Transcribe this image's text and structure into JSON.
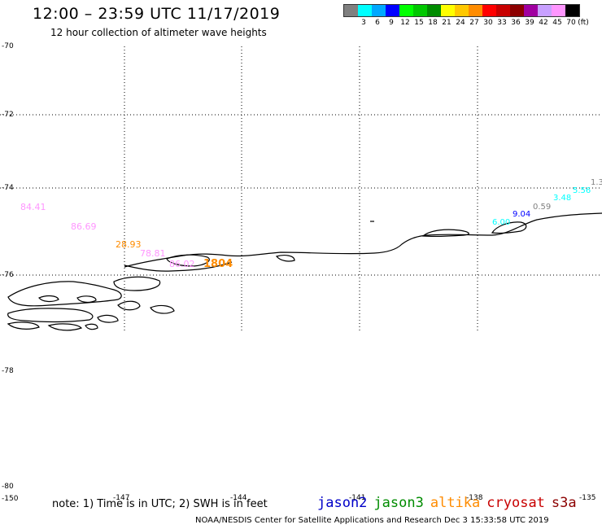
{
  "header": {
    "title": "12:00 – 23:59 UTC 11/17/2019",
    "subtitle": "12 hour collection of altimeter wave heights"
  },
  "legend": {
    "unit": "(ft)",
    "items": [
      {
        "color": "#808080",
        "label": ""
      },
      {
        "color": "#00ffff",
        "label": "3"
      },
      {
        "color": "#00a8ff",
        "label": "6"
      },
      {
        "color": "#0000ff",
        "label": "9"
      },
      {
        "color": "#00ff00",
        "label": "12"
      },
      {
        "color": "#00c800",
        "label": "15"
      },
      {
        "color": "#008c00",
        "label": "18"
      },
      {
        "color": "#ffff00",
        "label": "21"
      },
      {
        "color": "#ffc800",
        "label": "24"
      },
      {
        "color": "#ff8c00",
        "label": "27"
      },
      {
        "color": "#ff0000",
        "label": "30"
      },
      {
        "color": "#c80000",
        "label": "33"
      },
      {
        "color": "#8c0000",
        "label": "36"
      },
      {
        "color": "#a000a0",
        "label": "39"
      },
      {
        "color": "#c8a0ff",
        "label": "42"
      },
      {
        "color": "#ff96ff",
        "label": "45"
      },
      {
        "color": "#000000",
        "label": "70"
      }
    ]
  },
  "axes": {
    "lat_labels": [
      "-70",
      "-72",
      "-74",
      "-76",
      "-78",
      "-80"
    ],
    "lon_labels": [
      "-150",
      "-147",
      "-144",
      "-141",
      "-138",
      "-135"
    ]
  },
  "observations": [
    {
      "text": "84.41",
      "color": "#ff96ff"
    },
    {
      "text": "86.69",
      "color": "#ff96ff"
    },
    {
      "text": "28.93",
      "color": "#ff8c00"
    },
    {
      "text": "78.81",
      "color": "#ff96ff"
    },
    {
      "text": "86.02",
      "color": "#ff96ff"
    },
    {
      "text": "1804",
      "color": "#ff8c00"
    },
    {
      "text": "6.00",
      "color": "#00ffff"
    },
    {
      "text": "9.04",
      "color": "#0000ff"
    },
    {
      "text": "0.59",
      "color": "#808080"
    },
    {
      "text": "3.48",
      "color": "#00ffff"
    },
    {
      "text": "5.56",
      "color": "#00ffff"
    },
    {
      "text": "1.3",
      "color": "#808080"
    }
  ],
  "footer": {
    "note": "note: 1) Time is in UTC; 2) SWH is in feet",
    "satellites": [
      {
        "name": "jason2",
        "color": "#0000c8"
      },
      {
        "name": "jason3",
        "color": "#008c00"
      },
      {
        "name": "altika",
        "color": "#ff8c00"
      },
      {
        "name": "cryosat",
        "color": "#c80000"
      },
      {
        "name": "s3a",
        "color": "#8c0000"
      }
    ],
    "credit": "NOAA/NESDIS Center for Satellite Applications and Research   Dec  3 15:33:58 UTC 2019"
  }
}
